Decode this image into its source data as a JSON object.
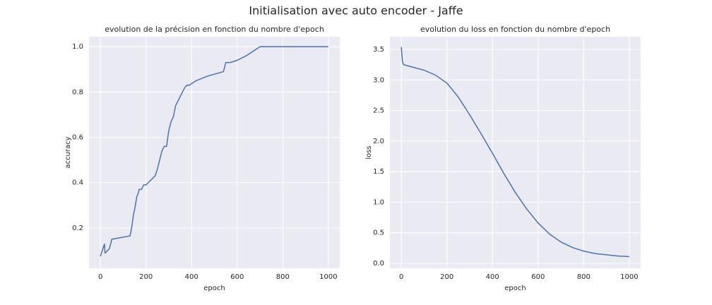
{
  "title": "Initialisation avec auto encoder - Jaffe",
  "chart_data": [
    {
      "type": "line",
      "title": "evolution de la précision en fonction du nombre d'epoch",
      "x_label": "epoch",
      "y_label": "accuracy",
      "xlim": [
        -50,
        1050
      ],
      "ylim": [
        0.022,
        1.044
      ],
      "xticks": [
        0,
        200,
        400,
        600,
        800,
        1000
      ],
      "yticks": [
        0.2,
        0.4,
        0.6,
        0.8,
        {
          "value": 1,
          "label": "1.0"
        }
      ],
      "grid": true,
      "background": "#eaeaf2",
      "x": [
        0,
        18,
        20,
        22,
        40,
        50,
        130,
        135,
        140,
        145,
        150,
        155,
        160,
        165,
        170,
        180,
        190,
        200,
        220,
        240,
        250,
        255,
        260,
        265,
        270,
        280,
        290,
        300,
        310,
        320,
        330,
        340,
        350,
        360,
        370,
        380,
        390,
        420,
        470,
        540,
        550,
        570,
        600,
        640,
        700,
        1000
      ],
      "series": [
        {
          "name": "accuracy",
          "color": "#4c72b0",
          "values": [
            0.075,
            0.13,
            0.09,
            0.09,
            0.11,
            0.15,
            0.165,
            0.19,
            0.22,
            0.26,
            0.28,
            0.31,
            0.34,
            0.35,
            0.37,
            0.37,
            0.39,
            0.39,
            0.41,
            0.43,
            0.46,
            0.48,
            0.5,
            0.52,
            0.54,
            0.56,
            0.56,
            0.63,
            0.67,
            0.69,
            0.74,
            0.76,
            0.78,
            0.8,
            0.82,
            0.83,
            0.83,
            0.85,
            0.87,
            0.89,
            0.93,
            0.93,
            0.94,
            0.96,
            1.0,
            1.0
          ]
        }
      ]
    },
    {
      "type": "line",
      "title": "evolution du loss en fonction du nombre d'epoch",
      "x_label": "epoch",
      "y_label": "loss",
      "xlim": [
        -50,
        1050
      ],
      "ylim": [
        -0.081,
        3.708
      ],
      "xticks": [
        0,
        200,
        400,
        600,
        800,
        1000
      ],
      "yticks": [
        {
          "value": 0,
          "label": "0.0"
        },
        0.5,
        {
          "value": 1,
          "label": "1.0"
        },
        1.5,
        {
          "value": 2,
          "label": "2.0"
        },
        2.5,
        {
          "value": 3,
          "label": "3.0"
        },
        3.5
      ],
      "grid": true,
      "background": "#eaeaf2",
      "x": [
        0,
        5,
        10,
        50,
        100,
        150,
        200,
        250,
        300,
        350,
        400,
        450,
        500,
        550,
        600,
        650,
        700,
        750,
        800,
        850,
        900,
        950,
        1000
      ],
      "series": [
        {
          "name": "loss",
          "color": "#4c72b0",
          "values": [
            3.54,
            3.3,
            3.25,
            3.21,
            3.16,
            3.08,
            2.95,
            2.72,
            2.43,
            2.12,
            1.8,
            1.47,
            1.16,
            0.89,
            0.66,
            0.48,
            0.35,
            0.26,
            0.2,
            0.16,
            0.14,
            0.12,
            0.11
          ]
        }
      ]
    }
  ]
}
